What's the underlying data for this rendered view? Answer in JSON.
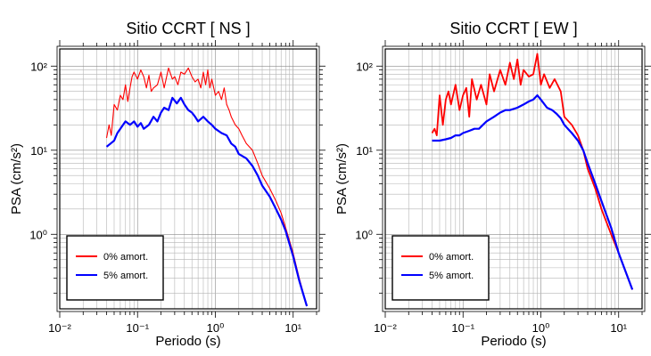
{
  "chart_data": [
    {
      "type": "line",
      "title": "Sitio CCRT [ NS ]",
      "xlabel": "Periodo (s)",
      "ylabel": "PSA (cm/s²)",
      "xscale": "log",
      "yscale": "log",
      "xlim": [
        0.01,
        20
      ],
      "ylim": [
        0.13,
        160
      ],
      "xticks": [
        {
          "value": 0.01,
          "label": "10⁻²"
        },
        {
          "value": 0.1,
          "label": "10⁻¹"
        },
        {
          "value": 1,
          "label": "10⁰"
        },
        {
          "value": 10,
          "label": "10¹"
        }
      ],
      "yticks": [
        {
          "value": 1,
          "label": "10⁰"
        },
        {
          "value": 10,
          "label": "10¹"
        },
        {
          "value": 100,
          "label": "10²"
        }
      ],
      "grid": true,
      "legend_position": "bottom-left",
      "series": [
        {
          "name": "0% amort.",
          "color": "#ff0000",
          "x": [
            0.04,
            0.043,
            0.046,
            0.05,
            0.055,
            0.06,
            0.065,
            0.07,
            0.075,
            0.08,
            0.085,
            0.09,
            0.1,
            0.11,
            0.12,
            0.13,
            0.14,
            0.15,
            0.16,
            0.18,
            0.2,
            0.22,
            0.25,
            0.28,
            0.3,
            0.33,
            0.36,
            0.4,
            0.45,
            0.5,
            0.55,
            0.6,
            0.65,
            0.7,
            0.75,
            0.8,
            0.85,
            0.9,
            1.0,
            1.1,
            1.2,
            1.3,
            1.4,
            1.5,
            1.6,
            1.8,
            2.0,
            2.2,
            2.5,
            3.0,
            3.5,
            4.0,
            5.0,
            6.0,
            7.0,
            8.0,
            10.0,
            12.0,
            15.0
          ],
          "y": [
            14,
            20,
            15,
            35,
            30,
            45,
            40,
            60,
            38,
            55,
            75,
            85,
            70,
            90,
            75,
            55,
            78,
            50,
            55,
            60,
            85,
            55,
            95,
            70,
            75,
            60,
            85,
            80,
            95,
            75,
            65,
            70,
            55,
            85,
            60,
            90,
            55,
            70,
            45,
            50,
            40,
            55,
            35,
            30,
            25,
            20,
            18,
            15,
            12,
            10,
            7,
            5,
            3.5,
            2.5,
            1.8,
            1.2,
            0.6,
            0.3,
            0.14
          ]
        },
        {
          "name": "5% amort.",
          "color": "#0000ff",
          "x": [
            0.04,
            0.045,
            0.05,
            0.055,
            0.06,
            0.07,
            0.08,
            0.09,
            0.1,
            0.11,
            0.12,
            0.14,
            0.16,
            0.18,
            0.2,
            0.22,
            0.25,
            0.28,
            0.32,
            0.36,
            0.4,
            0.45,
            0.5,
            0.55,
            0.6,
            0.7,
            0.8,
            0.9,
            1.0,
            1.2,
            1.4,
            1.6,
            1.8,
            2.0,
            2.5,
            3.0,
            3.5,
            4.0,
            5.0,
            6.0,
            7.0,
            8.0,
            10.0,
            12.0,
            15.0
          ],
          "y": [
            11,
            12,
            13,
            16,
            18,
            22,
            20,
            22,
            19,
            21,
            18,
            20,
            25,
            22,
            28,
            32,
            30,
            42,
            36,
            42,
            35,
            30,
            28,
            25,
            22,
            25,
            22,
            20,
            18,
            16,
            15,
            12,
            11,
            9,
            8,
            6.5,
            5,
            3.8,
            2.8,
            2.0,
            1.5,
            1.1,
            0.55,
            0.28,
            0.14
          ]
        }
      ]
    },
    {
      "type": "line",
      "title": "Sitio CCRT [ EW ]",
      "xlabel": "Periodo (s)",
      "ylabel": "PSA (cm/s²)",
      "xscale": "log",
      "yscale": "log",
      "xlim": [
        0.01,
        20
      ],
      "ylim": [
        0.13,
        160
      ],
      "xticks": [
        {
          "value": 0.01,
          "label": "10⁻²"
        },
        {
          "value": 0.1,
          "label": "10⁻¹"
        },
        {
          "value": 1,
          "label": "10⁰"
        },
        {
          "value": 10,
          "label": "10¹"
        }
      ],
      "yticks": [
        {
          "value": 1,
          "label": "10⁰"
        },
        {
          "value": 10,
          "label": "10¹"
        },
        {
          "value": 100,
          "label": "10²"
        }
      ],
      "grid": true,
      "legend_position": "bottom-left",
      "series": [
        {
          "name": "0% amort.",
          "color": "#ff0000",
          "x": [
            0.04,
            0.043,
            0.046,
            0.05,
            0.055,
            0.06,
            0.065,
            0.07,
            0.08,
            0.09,
            0.1,
            0.11,
            0.12,
            0.13,
            0.15,
            0.17,
            0.2,
            0.22,
            0.25,
            0.3,
            0.35,
            0.4,
            0.45,
            0.5,
            0.55,
            0.6,
            0.7,
            0.8,
            0.9,
            1.0,
            1.1,
            1.3,
            1.5,
            1.8,
            2.0,
            2.5,
            3.0,
            3.5,
            4.0,
            5.0,
            6.0,
            8.0,
            10.0,
            15.0
          ],
          "y": [
            16,
            18,
            15,
            45,
            20,
            40,
            50,
            35,
            60,
            30,
            45,
            55,
            25,
            70,
            40,
            60,
            35,
            80,
            50,
            90,
            60,
            110,
            70,
            120,
            60,
            90,
            75,
            80,
            140,
            60,
            80,
            55,
            70,
            50,
            25,
            20,
            15,
            10,
            6,
            3.5,
            2.0,
            1.0,
            0.6,
            0.22
          ]
        },
        {
          "name": "5% amort.",
          "color": "#0000ff",
          "x": [
            0.04,
            0.05,
            0.06,
            0.07,
            0.08,
            0.09,
            0.1,
            0.12,
            0.14,
            0.16,
            0.18,
            0.2,
            0.25,
            0.3,
            0.35,
            0.4,
            0.5,
            0.6,
            0.7,
            0.8,
            0.9,
            1.0,
            1.2,
            1.4,
            1.6,
            1.8,
            2.0,
            2.5,
            3.0,
            3.5,
            4.0,
            5.0,
            6.0,
            8.0,
            10.0,
            15.0
          ],
          "y": [
            13,
            13,
            13.5,
            14,
            15,
            15,
            16,
            17,
            18,
            18,
            20,
            22,
            25,
            28,
            30,
            30,
            32,
            35,
            38,
            40,
            45,
            40,
            32,
            30,
            27,
            24,
            20,
            16,
            13,
            10,
            7,
            4.0,
            2.5,
            1.2,
            0.6,
            0.22
          ]
        }
      ]
    }
  ]
}
